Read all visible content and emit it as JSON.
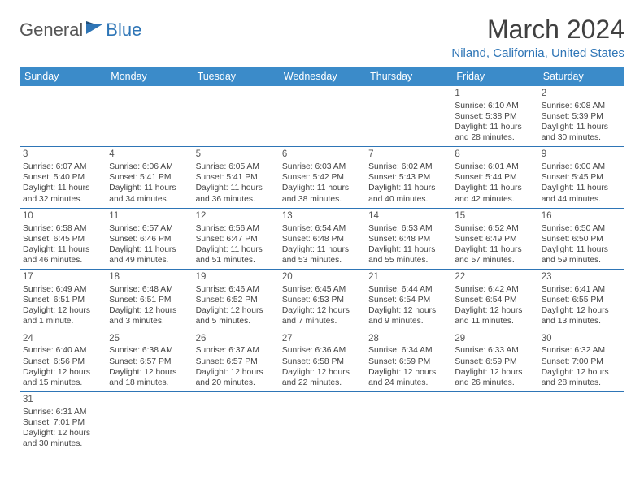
{
  "brand": {
    "part1": "General",
    "part2": "Blue"
  },
  "title": "March 2024",
  "location": "Niland, California, United States",
  "colors": {
    "header_bg": "#3b8bc9",
    "header_text": "#ffffff",
    "accent": "#2e75b6",
    "border": "#2e75b6",
    "body_text": "#444444",
    "title_text": "#404040",
    "background": "#ffffff"
  },
  "typography": {
    "title_fontsize": 32,
    "location_fontsize": 15,
    "dayheader_fontsize": 12.5,
    "cell_fontsize": 10.3,
    "daynum_fontsize": 11.5
  },
  "day_headers": [
    "Sunday",
    "Monday",
    "Tuesday",
    "Wednesday",
    "Thursday",
    "Friday",
    "Saturday"
  ],
  "weeks": [
    [
      null,
      null,
      null,
      null,
      null,
      {
        "n": "1",
        "sr": "Sunrise: 6:10 AM",
        "ss": "Sunset: 5:38 PM",
        "dl": "Daylight: 11 hours and 28 minutes."
      },
      {
        "n": "2",
        "sr": "Sunrise: 6:08 AM",
        "ss": "Sunset: 5:39 PM",
        "dl": "Daylight: 11 hours and 30 minutes."
      }
    ],
    [
      {
        "n": "3",
        "sr": "Sunrise: 6:07 AM",
        "ss": "Sunset: 5:40 PM",
        "dl": "Daylight: 11 hours and 32 minutes."
      },
      {
        "n": "4",
        "sr": "Sunrise: 6:06 AM",
        "ss": "Sunset: 5:41 PM",
        "dl": "Daylight: 11 hours and 34 minutes."
      },
      {
        "n": "5",
        "sr": "Sunrise: 6:05 AM",
        "ss": "Sunset: 5:41 PM",
        "dl": "Daylight: 11 hours and 36 minutes."
      },
      {
        "n": "6",
        "sr": "Sunrise: 6:03 AM",
        "ss": "Sunset: 5:42 PM",
        "dl": "Daylight: 11 hours and 38 minutes."
      },
      {
        "n": "7",
        "sr": "Sunrise: 6:02 AM",
        "ss": "Sunset: 5:43 PM",
        "dl": "Daylight: 11 hours and 40 minutes."
      },
      {
        "n": "8",
        "sr": "Sunrise: 6:01 AM",
        "ss": "Sunset: 5:44 PM",
        "dl": "Daylight: 11 hours and 42 minutes."
      },
      {
        "n": "9",
        "sr": "Sunrise: 6:00 AM",
        "ss": "Sunset: 5:45 PM",
        "dl": "Daylight: 11 hours and 44 minutes."
      }
    ],
    [
      {
        "n": "10",
        "sr": "Sunrise: 6:58 AM",
        "ss": "Sunset: 6:45 PM",
        "dl": "Daylight: 11 hours and 46 minutes."
      },
      {
        "n": "11",
        "sr": "Sunrise: 6:57 AM",
        "ss": "Sunset: 6:46 PM",
        "dl": "Daylight: 11 hours and 49 minutes."
      },
      {
        "n": "12",
        "sr": "Sunrise: 6:56 AM",
        "ss": "Sunset: 6:47 PM",
        "dl": "Daylight: 11 hours and 51 minutes."
      },
      {
        "n": "13",
        "sr": "Sunrise: 6:54 AM",
        "ss": "Sunset: 6:48 PM",
        "dl": "Daylight: 11 hours and 53 minutes."
      },
      {
        "n": "14",
        "sr": "Sunrise: 6:53 AM",
        "ss": "Sunset: 6:48 PM",
        "dl": "Daylight: 11 hours and 55 minutes."
      },
      {
        "n": "15",
        "sr": "Sunrise: 6:52 AM",
        "ss": "Sunset: 6:49 PM",
        "dl": "Daylight: 11 hours and 57 minutes."
      },
      {
        "n": "16",
        "sr": "Sunrise: 6:50 AM",
        "ss": "Sunset: 6:50 PM",
        "dl": "Daylight: 11 hours and 59 minutes."
      }
    ],
    [
      {
        "n": "17",
        "sr": "Sunrise: 6:49 AM",
        "ss": "Sunset: 6:51 PM",
        "dl": "Daylight: 12 hours and 1 minute."
      },
      {
        "n": "18",
        "sr": "Sunrise: 6:48 AM",
        "ss": "Sunset: 6:51 PM",
        "dl": "Daylight: 12 hours and 3 minutes."
      },
      {
        "n": "19",
        "sr": "Sunrise: 6:46 AM",
        "ss": "Sunset: 6:52 PM",
        "dl": "Daylight: 12 hours and 5 minutes."
      },
      {
        "n": "20",
        "sr": "Sunrise: 6:45 AM",
        "ss": "Sunset: 6:53 PM",
        "dl": "Daylight: 12 hours and 7 minutes."
      },
      {
        "n": "21",
        "sr": "Sunrise: 6:44 AM",
        "ss": "Sunset: 6:54 PM",
        "dl": "Daylight: 12 hours and 9 minutes."
      },
      {
        "n": "22",
        "sr": "Sunrise: 6:42 AM",
        "ss": "Sunset: 6:54 PM",
        "dl": "Daylight: 12 hours and 11 minutes."
      },
      {
        "n": "23",
        "sr": "Sunrise: 6:41 AM",
        "ss": "Sunset: 6:55 PM",
        "dl": "Daylight: 12 hours and 13 minutes."
      }
    ],
    [
      {
        "n": "24",
        "sr": "Sunrise: 6:40 AM",
        "ss": "Sunset: 6:56 PM",
        "dl": "Daylight: 12 hours and 15 minutes."
      },
      {
        "n": "25",
        "sr": "Sunrise: 6:38 AM",
        "ss": "Sunset: 6:57 PM",
        "dl": "Daylight: 12 hours and 18 minutes."
      },
      {
        "n": "26",
        "sr": "Sunrise: 6:37 AM",
        "ss": "Sunset: 6:57 PM",
        "dl": "Daylight: 12 hours and 20 minutes."
      },
      {
        "n": "27",
        "sr": "Sunrise: 6:36 AM",
        "ss": "Sunset: 6:58 PM",
        "dl": "Daylight: 12 hours and 22 minutes."
      },
      {
        "n": "28",
        "sr": "Sunrise: 6:34 AM",
        "ss": "Sunset: 6:59 PM",
        "dl": "Daylight: 12 hours and 24 minutes."
      },
      {
        "n": "29",
        "sr": "Sunrise: 6:33 AM",
        "ss": "Sunset: 6:59 PM",
        "dl": "Daylight: 12 hours and 26 minutes."
      },
      {
        "n": "30",
        "sr": "Sunrise: 6:32 AM",
        "ss": "Sunset: 7:00 PM",
        "dl": "Daylight: 12 hours and 28 minutes."
      }
    ],
    [
      {
        "n": "31",
        "sr": "Sunrise: 6:31 AM",
        "ss": "Sunset: 7:01 PM",
        "dl": "Daylight: 12 hours and 30 minutes."
      },
      null,
      null,
      null,
      null,
      null,
      null
    ]
  ]
}
